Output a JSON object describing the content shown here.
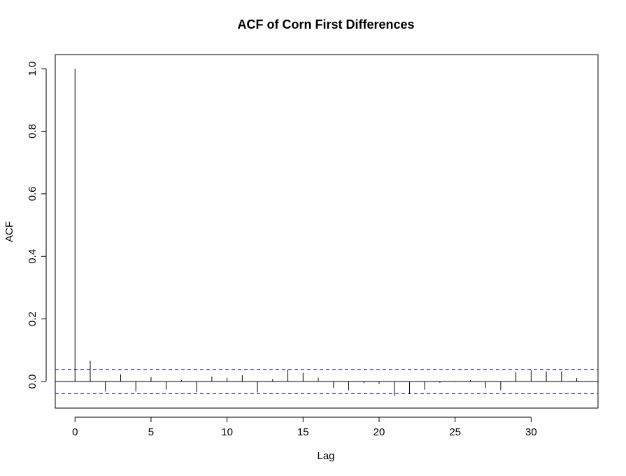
{
  "chart_data": {
    "type": "bar",
    "title": "ACF of Corn First Differences",
    "xlabel": "Lag",
    "ylabel": "ACF",
    "xlim": [
      -1.3,
      34.4
    ],
    "ylim": [
      -0.085,
      1.045
    ],
    "xticks": [
      0,
      5,
      10,
      15,
      20,
      25,
      30
    ],
    "yticks": [
      0.0,
      0.2,
      0.4,
      0.6,
      0.8,
      1.0
    ],
    "xtick_labels": [
      "0",
      "5",
      "10",
      "15",
      "20",
      "25",
      "30"
    ],
    "ytick_labels": [
      "0.0",
      "0.2",
      "0.4",
      "0.6",
      "0.8",
      "1.0"
    ],
    "lags": [
      0,
      1,
      2,
      3,
      4,
      5,
      6,
      7,
      8,
      9,
      10,
      11,
      12,
      13,
      14,
      15,
      16,
      17,
      18,
      19,
      20,
      21,
      22,
      23,
      24,
      25,
      26,
      27,
      28,
      29,
      30,
      31,
      32,
      33
    ],
    "values": [
      1.0,
      0.066,
      -0.032,
      0.023,
      -0.032,
      0.014,
      -0.026,
      0.005,
      -0.034,
      0.016,
      0.012,
      0.02,
      -0.035,
      0.008,
      0.038,
      0.028,
      0.012,
      -0.02,
      -0.028,
      -0.005,
      -0.008,
      -0.046,
      -0.04,
      -0.026,
      -0.004,
      0.002,
      0.005,
      -0.021,
      -0.028,
      0.03,
      0.036,
      0.032,
      0.032,
      0.011
    ],
    "confidence_bounds": [
      0.039,
      -0.039
    ],
    "zero_line": 0,
    "colors": {
      "spikes": "#000000",
      "confidence": "#2222dd",
      "frame": "#000000"
    },
    "grid": false
  }
}
